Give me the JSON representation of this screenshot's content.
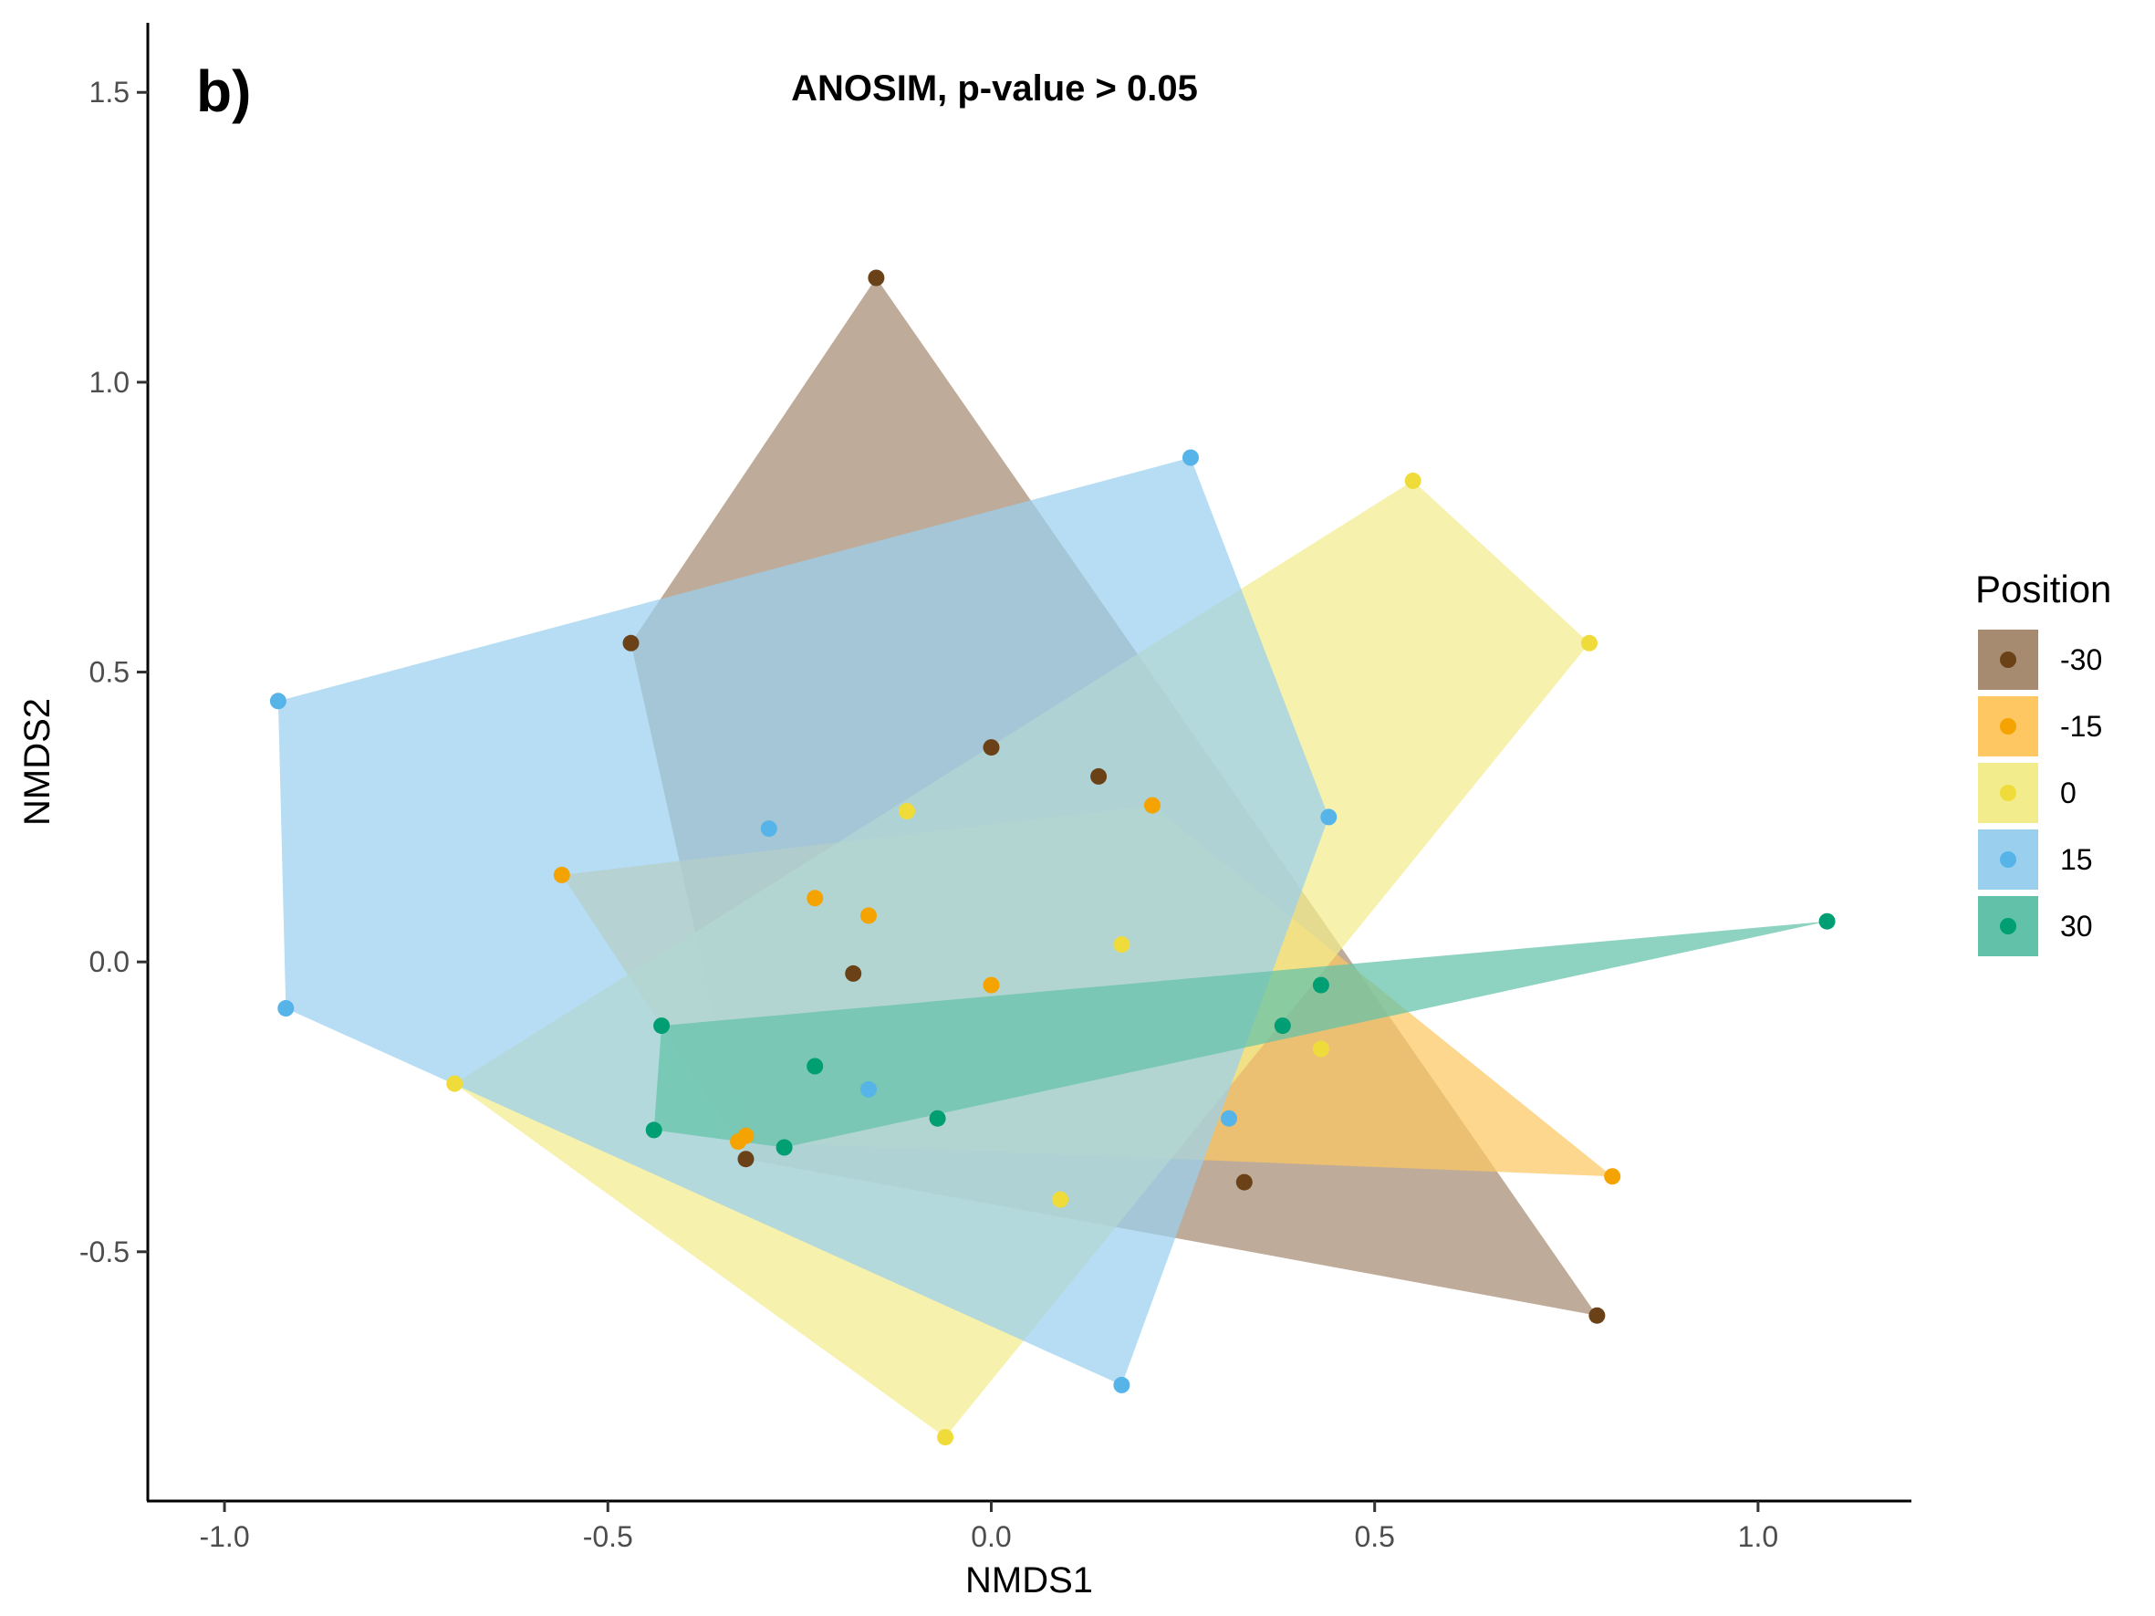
{
  "panel_label": "b)",
  "chart_data": {
    "type": "scatter",
    "title": "ANOSIM, p-value > 0.05",
    "xlabel": "NMDS1",
    "ylabel": "NMDS2",
    "xlim": [
      -1.1,
      1.2
    ],
    "ylim": [
      -0.93,
      1.62
    ],
    "x_ticks": [
      -1.0,
      -0.5,
      0.0,
      0.5,
      1.0
    ],
    "x_tick_labels": [
      "-1.0",
      "-0.5",
      "0.0",
      "0.5",
      "1.0"
    ],
    "y_ticks": [
      -0.5,
      0.0,
      0.5,
      1.0,
      1.5
    ],
    "y_tick_labels": [
      "-0.5",
      "0.0",
      "0.5",
      "1.0",
      "1.5"
    ],
    "grid": false,
    "legend_title": "Position",
    "legend_position": "right",
    "series": [
      {
        "name": "-30",
        "point_color": "#6b4218",
        "fill_color": "#a68b71",
        "points": [
          [
            -0.15,
            1.18
          ],
          [
            -0.47,
            0.55
          ],
          [
            0.0,
            0.37
          ],
          [
            0.14,
            0.32
          ],
          [
            -0.18,
            -0.02
          ],
          [
            -0.32,
            -0.34
          ],
          [
            0.33,
            -0.38
          ],
          [
            0.79,
            -0.61
          ]
        ],
        "hull": [
          [
            -0.15,
            1.18
          ],
          [
            0.79,
            -0.61
          ],
          [
            -0.32,
            -0.34
          ],
          [
            -0.47,
            0.55
          ]
        ]
      },
      {
        "name": "-15",
        "point_color": "#f5a300",
        "fill_color": "#fec762",
        "points": [
          [
            0.21,
            0.27
          ],
          [
            -0.56,
            0.15
          ],
          [
            -0.23,
            0.11
          ],
          [
            -0.16,
            0.08
          ],
          [
            0.0,
            -0.04
          ],
          [
            -0.32,
            -0.3
          ],
          [
            -0.33,
            -0.31
          ],
          [
            0.81,
            -0.37
          ]
        ],
        "hull": [
          [
            -0.56,
            0.15
          ],
          [
            0.21,
            0.27
          ],
          [
            0.81,
            -0.37
          ],
          [
            -0.33,
            -0.31
          ]
        ]
      },
      {
        "name": "0",
        "point_color": "#efdc3b",
        "fill_color": "#f3ec8c",
        "points": [
          [
            0.55,
            0.83
          ],
          [
            0.78,
            0.55
          ],
          [
            -0.11,
            0.26
          ],
          [
            0.17,
            0.03
          ],
          [
            0.43,
            -0.15
          ],
          [
            -0.7,
            -0.21
          ],
          [
            0.09,
            -0.41
          ],
          [
            -0.06,
            -0.82
          ]
        ],
        "hull": [
          [
            0.55,
            0.83
          ],
          [
            0.78,
            0.55
          ],
          [
            -0.06,
            -0.82
          ],
          [
            -0.7,
            -0.21
          ]
        ]
      },
      {
        "name": "15",
        "point_color": "#56b4e9",
        "fill_color": "#9ad0ee",
        "points": [
          [
            0.26,
            0.87
          ],
          [
            -0.93,
            0.45
          ],
          [
            0.44,
            0.25
          ],
          [
            -0.29,
            0.23
          ],
          [
            -0.92,
            -0.08
          ],
          [
            -0.16,
            -0.22
          ],
          [
            0.31,
            -0.27
          ],
          [
            0.17,
            -0.73
          ]
        ],
        "hull": [
          [
            -0.93,
            0.45
          ],
          [
            0.26,
            0.87
          ],
          [
            0.44,
            0.25
          ],
          [
            0.17,
            -0.73
          ],
          [
            -0.92,
            -0.08
          ]
        ]
      },
      {
        "name": "30",
        "point_color": "#009e73",
        "fill_color": "#62c2a9",
        "points": [
          [
            1.09,
            0.07
          ],
          [
            0.43,
            -0.04
          ],
          [
            -0.43,
            -0.11
          ],
          [
            0.38,
            -0.11
          ],
          [
            -0.23,
            -0.18
          ],
          [
            -0.07,
            -0.27
          ],
          [
            -0.44,
            -0.29
          ],
          [
            -0.27,
            -0.32
          ]
        ],
        "hull": [
          [
            -0.43,
            -0.11
          ],
          [
            1.09,
            0.07
          ],
          [
            -0.27,
            -0.32
          ],
          [
            -0.44,
            -0.29
          ]
        ]
      }
    ]
  }
}
